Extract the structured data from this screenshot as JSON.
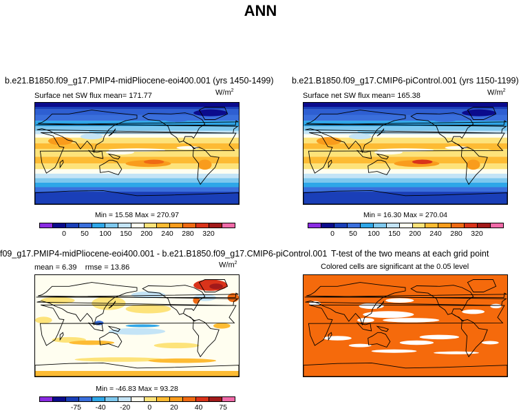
{
  "chart_data": [
    {
      "type": "heatmap",
      "title": "b.e21.B1850.f09_g17.PMIP4-midPliocene-eoi400.001 (yrs 1450-1499)",
      "subtitle": "Surface net SW flux",
      "mean_label": "mean= 171.77",
      "units": "W/m",
      "units_exp": "2",
      "min_label": "Min =  15.58",
      "max_label": "Max = 270.97",
      "colorbar_labels": [
        "0",
        "50",
        "100",
        "150",
        "200",
        "240",
        "280",
        "320"
      ]
    },
    {
      "type": "heatmap",
      "title": "b.e21.B1850.f09_g17.CMIP6-piControl.001 (yrs 1150-1199)",
      "subtitle": "Surface net SW flux",
      "mean_label": "mean= 165.38",
      "units": "W/m",
      "units_exp": "2",
      "min_label": "Min =  16.30",
      "max_label": "Max = 270.04",
      "colorbar_labels": [
        "0",
        "50",
        "100",
        "150",
        "200",
        "240",
        "280",
        "320"
      ]
    },
    {
      "type": "heatmap",
      "title": "f09_g17.PMIP4-midPliocene-eoi400.001 - b.e21.B1850.f09_g17.CMIP6-piControl.001",
      "mean_label": "mean =   6.39",
      "rmse_label": "rmse =  13.86",
      "units": "W/m",
      "units_exp": "2",
      "min_label": "Min = -46.83",
      "max_label": "Max =  93.28",
      "colorbar_labels": [
        "-75",
        "-40",
        "-20",
        "0",
        "20",
        "40",
        "75"
      ]
    },
    {
      "type": "heatmap",
      "title": "T-test of the two means at each grid point",
      "subtitle": "Colored cells are significant at the 0.05 level"
    }
  ],
  "page": {
    "title": "ANN"
  },
  "colors": {
    "abs_scale": [
      "#8a2be2",
      "#0b0b8c",
      "#1a3fb8",
      "#3a6fdc",
      "#2ea6e8",
      "#7ec8ee",
      "#c4e4f6",
      "#fffef0",
      "#fde37a",
      "#fdbb33",
      "#f99c1c",
      "#ef6a13",
      "#d9331a",
      "#a21a1a",
      "#f06aa8"
    ],
    "diff_scale": [
      "#8a2be2",
      "#0b0b8c",
      "#1a3fb8",
      "#3a6fdc",
      "#2ea6e8",
      "#7ec8ee",
      "#c4e4f6",
      "#fffef0",
      "#fde37a",
      "#fdbb33",
      "#f99c1c",
      "#ef6a13",
      "#d9331a",
      "#a21a1a",
      "#f06aa8"
    ],
    "ttest": "#f56a0c"
  }
}
